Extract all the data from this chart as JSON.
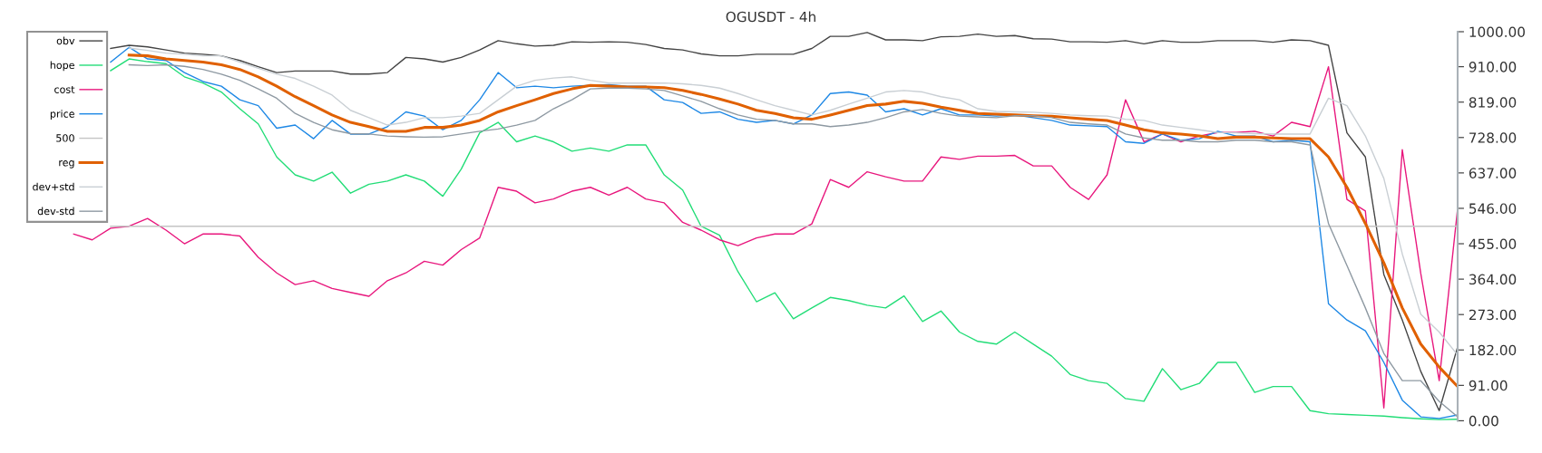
{
  "chart_data": {
    "type": "line",
    "title": "OGUSDT - 4h",
    "categories": [
      null,
      null,
      null,
      null,
      null,
      null,
      null,
      null,
      null,
      null,
      null,
      null,
      null,
      null,
      null,
      null,
      null,
      null,
      null,
      null,
      null,
      null,
      null,
      null,
      null,
      null,
      null,
      null,
      null,
      null,
      null,
      null,
      null,
      null,
      null,
      null,
      null,
      null,
      null,
      null,
      null,
      null,
      null,
      null,
      null,
      null,
      null,
      null,
      null,
      null,
      null,
      null,
      null,
      null,
      null,
      null,
      null,
      null,
      null,
      null,
      null,
      null,
      null,
      null,
      null,
      null,
      null,
      null,
      null,
      null,
      null,
      null,
      null,
      null,
      null,
      null
    ],
    "series": [
      {
        "name": "obv",
        "color": "#444444",
        "values": [
          null,
          null,
          957,
          965,
          961,
          953,
          945,
          942,
          938,
          926,
          910,
          895,
          899,
          899,
          899,
          891,
          891,
          895,
          934,
          930,
          922,
          934,
          953,
          977,
          969,
          963,
          965,
          974,
          973,
          974,
          973,
          967,
          957,
          953,
          943,
          938,
          938,
          942,
          942,
          942,
          957,
          988,
          988,
          998,
          979,
          979,
          977,
          987,
          988,
          994,
          988,
          990,
          982,
          981,
          974,
          974,
          973,
          977,
          969,
          977,
          973,
          973,
          977,
          977,
          977,
          973,
          979,
          977,
          965,
          740,
          678,
          376,
          259,
          127,
          26,
          190
        ]
      },
      {
        "name": "hope",
        "color": "#22dd77",
        "values": [
          null,
          null,
          900,
          930,
          923,
          918,
          884,
          868,
          845,
          802,
          763,
          678,
          632,
          616,
          639,
          585,
          608,
          616,
          632,
          616,
          577,
          647,
          740,
          767,
          717,
          732,
          717,
          693,
          701,
          693,
          709,
          709,
          632,
          593,
          500,
          477,
          383,
          306,
          329,
          262,
          290,
          317,
          309,
          297,
          290,
          321,
          255,
          282,
          228,
          204,
          197,
          228,
          197,
          166,
          119,
          103,
          96,
          57,
          50,
          134,
          80,
          96,
          150,
          150,
          73,
          88,
          88,
          26,
          18,
          16,
          14,
          12,
          8,
          5,
          3,
          4
        ]
      },
      {
        "name": "cost",
        "color": "#e8177d",
        "values": [
          480,
          465,
          495,
          500,
          520,
          490,
          455,
          480,
          480,
          475,
          420,
          380,
          350,
          360,
          340,
          330,
          320,
          360,
          380,
          410,
          400,
          440,
          470,
          600,
          590,
          560,
          570,
          590,
          600,
          580,
          600,
          570,
          560,
          510,
          490,
          465,
          450,
          470,
          480,
          480,
          506,
          620,
          600,
          640,
          627,
          616,
          616,
          678,
          672,
          680,
          680,
          682,
          655,
          655,
          600,
          569,
          632,
          825,
          717,
          737,
          717,
          732,
          741,
          741,
          744,
          732,
          767,
          756,
          910,
          569,
          539,
          33,
          697,
          379,
          103,
          546
        ]
      },
      {
        "name": "price",
        "color": "#1e88e5",
        "values": [
          null,
          null,
          922,
          960,
          930,
          926,
          895,
          872,
          860,
          825,
          810,
          752,
          760,
          725,
          772,
          737,
          737,
          756,
          794,
          783,
          748,
          772,
          825,
          895,
          856,
          860,
          856,
          860,
          862,
          864,
          860,
          860,
          825,
          818,
          790,
          794,
          775,
          767,
          772,
          763,
          786,
          841,
          845,
          837,
          794,
          802,
          786,
          802,
          786,
          786,
          783,
          786,
          779,
          772,
          760,
          758,
          756,
          717,
          713,
          737,
          721,
          725,
          744,
          732,
          732,
          717,
          721,
          717,
          301,
          259,
          231,
          150,
          53,
          10,
          6,
          15
        ]
      },
      {
        "name": "500",
        "color": "#c4c4c4",
        "values": [
          null,
          null,
          500,
          500,
          500,
          500,
          500,
          500,
          500,
          500,
          500,
          500,
          500,
          500,
          500,
          500,
          500,
          500,
          500,
          500,
          500,
          500,
          500,
          500,
          500,
          500,
          500,
          500,
          500,
          500,
          500,
          500,
          500,
          500,
          500,
          500,
          500,
          500,
          500,
          500,
          500,
          500,
          500,
          500,
          500,
          500,
          500,
          500,
          500,
          500,
          500,
          500,
          500,
          500,
          500,
          500,
          500,
          500,
          500,
          500,
          500,
          500,
          500,
          500,
          500,
          500,
          500,
          500,
          500,
          500,
          500,
          500,
          500,
          500,
          500,
          500
        ]
      },
      {
        "name": "reg",
        "color": "#e06000",
        "values": [
          null,
          null,
          null,
          940,
          938,
          930,
          926,
          922,
          915,
          903,
          884,
          860,
          833,
          810,
          786,
          767,
          756,
          744,
          744,
          754,
          754,
          760,
          772,
          794,
          810,
          825,
          841,
          853,
          862,
          860,
          858,
          858,
          856,
          849,
          839,
          827,
          814,
          798,
          790,
          779,
          775,
          786,
          798,
          810,
          814,
          821,
          816,
          806,
          798,
          790,
          788,
          786,
          784,
          783,
          779,
          775,
          772,
          760,
          748,
          740,
          737,
          732,
          725,
          729,
          729,
          727,
          725,
          725,
          678,
          600,
          507,
          406,
          290,
          197,
          138,
          88
        ]
      },
      {
        "name": "dev+std",
        "color": "#c9cfd4",
        "values": [
          null,
          null,
          null,
          958,
          952,
          945,
          942,
          938,
          938,
          922,
          906,
          891,
          880,
          860,
          837,
          798,
          779,
          760,
          767,
          779,
          779,
          783,
          790,
          825,
          860,
          875,
          881,
          884,
          875,
          868,
          868,
          868,
          868,
          866,
          862,
          855,
          841,
          825,
          810,
          798,
          786,
          798,
          814,
          829,
          845,
          849,
          845,
          833,
          825,
          802,
          795,
          794,
          793,
          790,
          786,
          784,
          783,
          775,
          772,
          760,
          754,
          748,
          741,
          740,
          738,
          737,
          737,
          737,
          829,
          810,
          732,
          623,
          429,
          274,
          228,
          169
        ]
      },
      {
        "name": "dev-std",
        "color": "#8e99a2",
        "values": [
          null,
          null,
          null,
          915,
          913,
          915,
          911,
          903,
          891,
          875,
          853,
          829,
          790,
          767,
          748,
          738,
          737,
          732,
          730,
          729,
          730,
          737,
          744,
          750,
          760,
          772,
          802,
          825,
          853,
          855,
          855,
          853,
          849,
          835,
          821,
          802,
          786,
          775,
          772,
          763,
          763,
          756,
          760,
          767,
          779,
          794,
          800,
          790,
          783,
          781,
          779,
          784,
          784,
          779,
          767,
          763,
          760,
          737,
          727,
          721,
          721,
          717,
          717,
          721,
          721,
          717,
          717,
          709,
          507,
          399,
          290,
          173,
          103,
          103,
          50,
          10
        ]
      }
    ],
    "ylim": [
      0,
      1000
    ],
    "yticks": [
      {
        "value": 0,
        "label": "0.00"
      },
      {
        "value": 91,
        "label": "91.00"
      },
      {
        "value": 182,
        "label": "182.00"
      },
      {
        "value": 273,
        "label": "273.00"
      },
      {
        "value": 364,
        "label": "364.00"
      },
      {
        "value": 455,
        "label": "455.00"
      },
      {
        "value": 546,
        "label": "546.00"
      },
      {
        "value": 637,
        "label": "637.00"
      },
      {
        "value": 728,
        "label": "728.00"
      },
      {
        "value": 819,
        "label": "819.00"
      },
      {
        "value": 910,
        "label": "910.00"
      },
      {
        "value": 1000,
        "label": "1000.00"
      }
    ],
    "tick_labels": "y",
    "grid": false,
    "legend": "top left",
    "marker": "none",
    "line_style": "solid"
  }
}
